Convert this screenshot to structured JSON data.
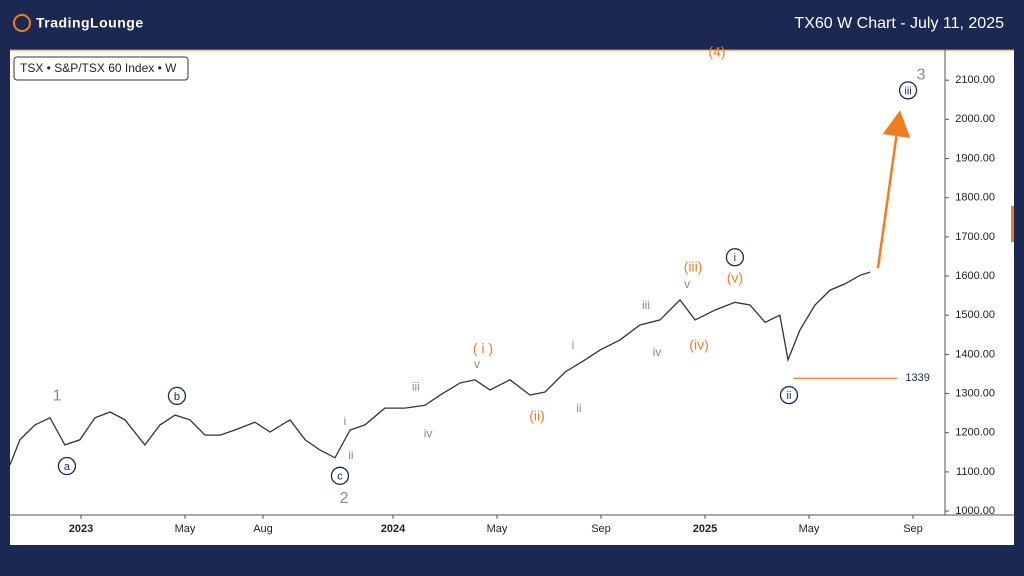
{
  "brand": "TradingLounge",
  "chart_data": {
    "type": "line",
    "title": "TX60 W Chart - July 11, 2025",
    "legend_text": "TSX • S&P/TSX 60 Index • W",
    "color": "#333333",
    "x": [
      -2.73,
      -2.35,
      -1.77,
      -1.19,
      -0.62,
      -0.04,
      0.54,
      1.12,
      1.69,
      2.46,
      3.04,
      3.62,
      4.19,
      4.77,
      5.35,
      5.92,
      6.69,
      7.27,
      8.04,
      8.62,
      9.19,
      9.77,
      10.35,
      10.92,
      11.69,
      12.46,
      13.23,
      13.81,
      14.58,
      15.15,
      15.73,
      16.5,
      17.27,
      17.85,
      18.62,
      19.38,
      19.96,
      20.73,
      21.5,
      22.27,
      23.04,
      23.62,
      24.38,
      25.15,
      25.73,
      26.31,
      26.88,
      27.19,
      27.65,
      28.23,
      28.81,
      29.38,
      29.96,
      30.35
    ],
    "values": [
      1118,
      1182,
      1220,
      1238,
      1169,
      1182,
      1238,
      1253,
      1233,
      1169,
      1220,
      1245,
      1233,
      1194,
      1194,
      1207,
      1227,
      1202,
      1233,
      1182,
      1156,
      1136,
      1207,
      1220,
      1263,
      1263,
      1270,
      1296,
      1327,
      1335,
      1309,
      1335,
      1296,
      1304,
      1355,
      1386,
      1411,
      1437,
      1475,
      1488,
      1539,
      1488,
      1513,
      1533,
      1526,
      1482,
      1500,
      1386,
      1462,
      1526,
      1564,
      1580,
      1602,
      1610
    ],
    "xlim": [
      -2.73,
      33.23
    ],
    "ylim": [
      990,
      2177
    ],
    "xticks": [
      {
        "value": 0,
        "label": "2023"
      },
      {
        "value": 4,
        "label": "May"
      },
      {
        "value": 7,
        "label": "Aug"
      },
      {
        "value": 12,
        "label": "2024"
      },
      {
        "value": 16,
        "label": "May"
      },
      {
        "value": 20,
        "label": "Sep"
      },
      {
        "value": 24,
        "label": "2025"
      },
      {
        "value": 28,
        "label": "May"
      },
      {
        "value": 32,
        "label": "Sep"
      }
    ],
    "yticks": [
      {
        "value": 1000,
        "label": "1000.00"
      },
      {
        "value": 1100,
        "label": "1100.00"
      },
      {
        "value": 1200,
        "label": "1200.00"
      },
      {
        "value": 1300,
        "label": "1300.00"
      },
      {
        "value": 1400,
        "label": "1400.00"
      },
      {
        "value": 1500,
        "label": "1500.00"
      },
      {
        "value": 1600,
        "label": "1600.00"
      },
      {
        "value": 1700,
        "label": "1700.00"
      },
      {
        "value": 1800,
        "label": "1800.00"
      },
      {
        "value": 1900,
        "label": "1900.00"
      },
      {
        "value": 2000,
        "label": "2000.00"
      },
      {
        "value": 2100,
        "label": "2100.00"
      }
    ],
    "level": {
      "value": 1339,
      "x": [
        27.4,
        31.4
      ],
      "color": "#f47c20"
    },
    "projection": {
      "x": [
        30.65,
        31.5
      ],
      "y": [
        1620,
        2023
      ],
      "color": "#f47c20"
    },
    "annotations": [
      {
        "text": "1",
        "x": -0.92,
        "y": 1296,
        "color": "#8a8a8a",
        "size": 16
      },
      {
        "text": "a",
        "x": -0.54,
        "y": 1115,
        "color": "#1b2852",
        "circle": true
      },
      {
        "text": "b",
        "x": 3.69,
        "y": 1294,
        "color": "#1b2852",
        "circle": true
      },
      {
        "text": "c",
        "x": 9.96,
        "y": 1090,
        "color": "#1b2852",
        "circle": true
      },
      {
        "text": "2",
        "x": 10.12,
        "y": 1034,
        "color": "#8a8a8a",
        "size": 16
      },
      {
        "text": "i",
        "x": 10.15,
        "y": 1230,
        "color": "#8a8a8a",
        "size": 12
      },
      {
        "text": "ii",
        "x": 10.38,
        "y": 1143,
        "color": "#8a8a8a",
        "size": 12
      },
      {
        "text": "iii",
        "x": 12.88,
        "y": 1319,
        "color": "#8a8a8a",
        "size": 12
      },
      {
        "text": "iv",
        "x": 13.35,
        "y": 1199,
        "color": "#8a8a8a",
        "size": 12
      },
      {
        "text": "v",
        "x": 15.23,
        "y": 1376,
        "color": "#8a8a8a",
        "size": 12
      },
      {
        "text": "( i )",
        "x": 15.46,
        "y": 1416,
        "color": "#f47c20",
        "size": 14
      },
      {
        "text": "(ii)",
        "x": 17.54,
        "y": 1243,
        "color": "#f47c20",
        "size": 14
      },
      {
        "text": "i",
        "x": 18.92,
        "y": 1424,
        "color": "#8a8a8a",
        "size": 12
      },
      {
        "text": "ii",
        "x": 19.15,
        "y": 1263,
        "color": "#8a8a8a",
        "size": 12
      },
      {
        "text": "iii",
        "x": 21.73,
        "y": 1526,
        "color": "#8a8a8a",
        "size": 12
      },
      {
        "text": "iv",
        "x": 22.15,
        "y": 1406,
        "color": "#8a8a8a",
        "size": 12
      },
      {
        "text": "v",
        "x": 23.31,
        "y": 1580,
        "color": "#8a8a8a",
        "size": 12
      },
      {
        "text": "(iii)",
        "x": 23.54,
        "y": 1623,
        "color": "#f47c20",
        "size": 14
      },
      {
        "text": "(iv)",
        "x": 23.77,
        "y": 1424,
        "color": "#f47c20",
        "size": 14
      },
      {
        "text": "i",
        "x": 25.15,
        "y": 1648,
        "color": "#1b2852",
        "circle": true
      },
      {
        "text": "(v)",
        "x": 25.15,
        "y": 1595,
        "color": "#f47c20",
        "size": 14
      },
      {
        "text": "ii",
        "x": 27.23,
        "y": 1296,
        "color": "#1b2852",
        "circle": true
      },
      {
        "text": "(4)",
        "x": 24.46,
        "y": 2172,
        "color": "#f47c20",
        "size": 14
      },
      {
        "text": "3",
        "x": 32.31,
        "y": 2115,
        "color": "#8a8a8a",
        "size": 16
      },
      {
        "text": "iii",
        "x": 31.81,
        "y": 2074,
        "color": "#1b2852",
        "circle": true
      }
    ]
  }
}
